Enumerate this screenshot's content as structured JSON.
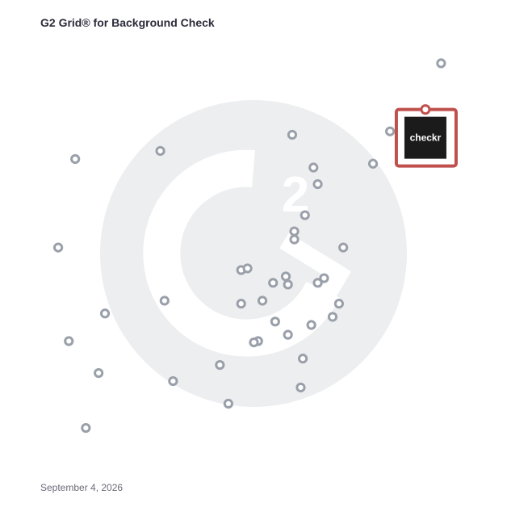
{
  "title": "G2 Grid® for Background Check",
  "date": "September 4, 2026",
  "colors": {
    "frame_top_left": "#5b4bc4",
    "frame_top_right": "#ef5a2a",
    "frame_bottom_left": "#1ea0d6",
    "frame_bottom_right": "#8e3fa8",
    "quadrant_divider_vertical": "#8a5aa8",
    "quadrant_divider_horizontal": "#7a4a9a",
    "marker_stroke": "#9aa0aa",
    "watermark": "#edeef0",
    "highlight": "#c0504d",
    "logo_bg": "#1b1b1b"
  },
  "watermark_icon": "g2-logo-icon",
  "chart_data": {
    "type": "scatter",
    "title": "G2 Grid® for Background Check",
    "xlim": [
      0,
      100
    ],
    "ylim": [
      0,
      100
    ],
    "grid": false,
    "points": [
      {
        "x": 94.0,
        "y": 94.8
      },
      {
        "x": 82.0,
        "y": 78.8
      },
      {
        "x": 78.0,
        "y": 71.2
      },
      {
        "x": 59.0,
        "y": 78.0
      },
      {
        "x": 64.0,
        "y": 70.3
      },
      {
        "x": 65.0,
        "y": 66.4
      },
      {
        "x": 62.0,
        "y": 59.1
      },
      {
        "x": 59.5,
        "y": 55.3
      },
      {
        "x": 59.5,
        "y": 53.4
      },
      {
        "x": 71.0,
        "y": 51.5
      },
      {
        "x": 28.0,
        "y": 74.2
      },
      {
        "x": 8.0,
        "y": 72.3
      },
      {
        "x": 4.0,
        "y": 51.5
      },
      {
        "x": 47.0,
        "y": 46.2
      },
      {
        "x": 48.5,
        "y": 46.6
      },
      {
        "x": 57.5,
        "y": 44.7
      },
      {
        "x": 66.5,
        "y": 44.3
      },
      {
        "x": 65.0,
        "y": 43.2
      },
      {
        "x": 54.5,
        "y": 43.2
      },
      {
        "x": 58.0,
        "y": 42.8
      },
      {
        "x": 29.0,
        "y": 39.0
      },
      {
        "x": 47.0,
        "y": 38.3
      },
      {
        "x": 52.0,
        "y": 39.0
      },
      {
        "x": 70.0,
        "y": 38.3
      },
      {
        "x": 15.0,
        "y": 36.0
      },
      {
        "x": 68.5,
        "y": 35.2
      },
      {
        "x": 55.0,
        "y": 34.1
      },
      {
        "x": 63.5,
        "y": 33.3
      },
      {
        "x": 58.0,
        "y": 31.0
      },
      {
        "x": 51.0,
        "y": 29.5
      },
      {
        "x": 50.0,
        "y": 29.2
      },
      {
        "x": 6.5,
        "y": 29.5
      },
      {
        "x": 61.5,
        "y": 25.4
      },
      {
        "x": 42.0,
        "y": 23.9
      },
      {
        "x": 13.5,
        "y": 22.0
      },
      {
        "x": 31.0,
        "y": 20.1
      },
      {
        "x": 61.0,
        "y": 18.6
      },
      {
        "x": 44.0,
        "y": 14.8
      },
      {
        "x": 10.5,
        "y": 9.1
      }
    ],
    "highlighted_product": {
      "label": "checkr",
      "x": 90.5,
      "y": 77.3
    }
  }
}
